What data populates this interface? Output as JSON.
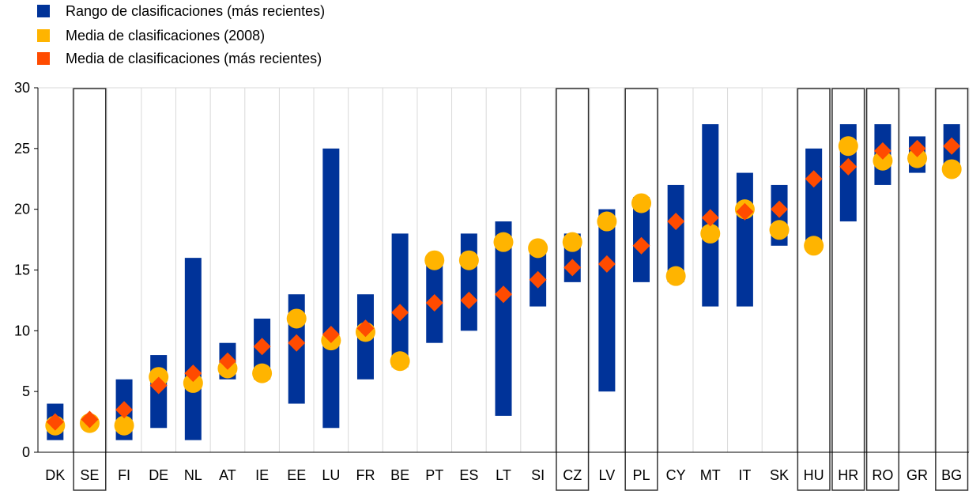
{
  "chart_data": {
    "type": "bar",
    "title": "",
    "xlabel": "",
    "ylabel": "",
    "ylim": [
      0,
      30
    ],
    "yticks": [
      0,
      5,
      10,
      15,
      20,
      25,
      30
    ],
    "grid": "vertical",
    "legend_position": "top-left",
    "colors": {
      "range": "#003399",
      "mean_2008": "#FFB400",
      "mean_recent": "#FF4B00",
      "box": "#333333",
      "grid": "#d9d9d9"
    },
    "categories": [
      "DK",
      "SE",
      "FI",
      "DE",
      "NL",
      "AT",
      "IE",
      "EE",
      "LU",
      "FR",
      "BE",
      "PT",
      "ES",
      "LT",
      "SI",
      "CZ",
      "LV",
      "PL",
      "CY",
      "MT",
      "IT",
      "SK",
      "HU",
      "HR",
      "RO",
      "GR",
      "BG"
    ],
    "boxed": [
      "SE",
      "CZ",
      "PL",
      "HU",
      "HR",
      "RO",
      "BG"
    ],
    "series": [
      {
        "name": "Rango de clasificaciones (más recientes)",
        "marker": "range-bar",
        "low": [
          1,
          2.5,
          1,
          2,
          1,
          6,
          6,
          4,
          2,
          6,
          7,
          9,
          10,
          3,
          12,
          14,
          5,
          14,
          14,
          12,
          12,
          17,
          17,
          19,
          22,
          23,
          23
        ],
        "high": [
          4,
          2.5,
          6,
          8,
          16,
          9,
          11,
          13,
          25,
          13,
          18,
          16,
          18,
          19,
          17,
          18,
          20,
          21,
          22,
          27,
          23,
          22,
          25,
          27,
          27,
          26,
          27
        ]
      },
      {
        "name": "Media de clasificaciones (2008)",
        "marker": "circle",
        "values": [
          2.2,
          2.4,
          2.2,
          6.2,
          5.7,
          6.9,
          6.5,
          11,
          9.2,
          9.9,
          7.5,
          15.8,
          15.8,
          17.3,
          16.8,
          17.3,
          19,
          20.5,
          14.5,
          18,
          20,
          18.3,
          17,
          25.2,
          24,
          24.2,
          23.3
        ]
      },
      {
        "name": "Media de clasificaciones (más recientes)",
        "marker": "diamond",
        "values": [
          2.5,
          2.7,
          3.5,
          5.5,
          6.5,
          7.5,
          8.7,
          9,
          9.7,
          10.2,
          11.5,
          12.3,
          12.5,
          13,
          14.2,
          15.2,
          15.5,
          17,
          19,
          19.3,
          19.8,
          20,
          22.5,
          23.5,
          24.8,
          25,
          25.2
        ]
      }
    ]
  }
}
